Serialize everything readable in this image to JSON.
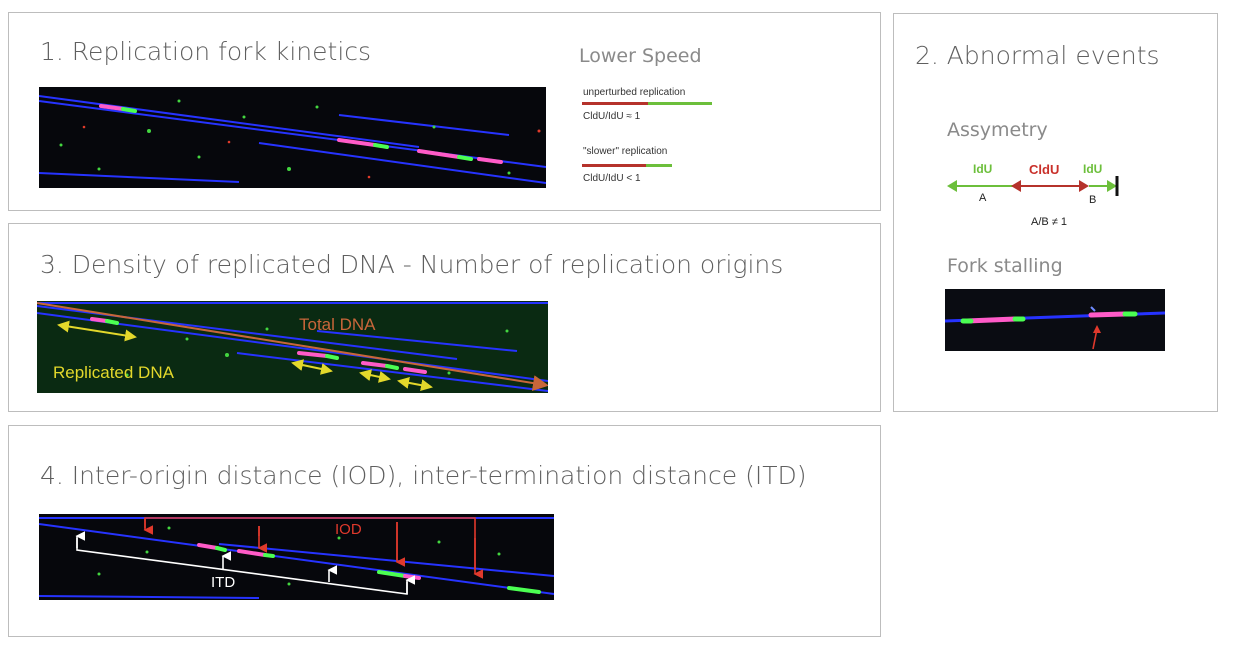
{
  "panel1": {
    "title": "1. Replication fork kinetics",
    "lower_speed": "Lower Speed",
    "unperturbed": "unperturbed replication",
    "ratio_equal": "CldU/IdU ≈ 1",
    "slower": "\"slower\" replication",
    "ratio_less": "CldU/IdU < 1"
  },
  "panel2": {
    "title": "2. Abnormal events",
    "assymetry": "Assymetry",
    "idu_left": "IdU",
    "cldu": "CldU",
    "idu_right": "IdU",
    "label_a": "A",
    "label_b": "B",
    "ratio_ab": "A/B ≠ 1",
    "fork_stalling": "Fork stalling"
  },
  "panel3": {
    "title": "3. Density of replicated DNA - Number of replication origins",
    "total_dna": "Total DNA",
    "replicated_dna": "Replicated DNA"
  },
  "panel4": {
    "title": "4. Inter-origin distance (IOD), inter-termination distance (ITD)",
    "iod": "IOD",
    "itd": "ITD"
  },
  "colors": {
    "red": "#b5322b",
    "green": "#6cbf3b",
    "orange": "#c8663a",
    "yellow": "#e3d82b",
    "dna_blue": "#2a3cff"
  }
}
